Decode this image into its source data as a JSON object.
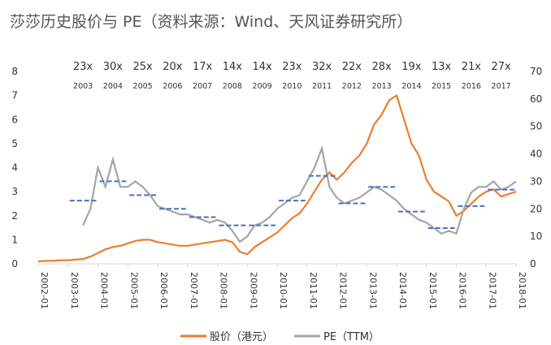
{
  "title": "莎莎历史股价与 PE（资料来源：Wind、天风证券研究所）",
  "chart_data": {
    "type": "line",
    "title": "莎莎历史股价与 PE（资料来源：Wind、天风证券研究所）",
    "x_ticks": [
      "2002-01",
      "2003-01",
      "2004-01",
      "2005-01",
      "2006-01",
      "2007-01",
      "2008-01",
      "2009-01",
      "2010-01",
      "2011-01",
      "2012-01",
      "2013-01",
      "2014-01",
      "2015-01",
      "2016-01",
      "2017-01",
      "2018-01"
    ],
    "y_left": {
      "range": [
        0,
        8
      ],
      "ticks": [
        0,
        1,
        2,
        3,
        4,
        5,
        6,
        7,
        8
      ]
    },
    "y_right": {
      "range": [
        0,
        70
      ],
      "ticks": [
        0,
        10,
        20,
        30,
        40,
        50,
        60,
        70
      ]
    },
    "grid": false,
    "legend_position": "bottom",
    "series": [
      {
        "name": "股价（港元）",
        "axis": "left",
        "color": "#ED7D31",
        "x": [
          "2002-01",
          "2002-04",
          "2002-07",
          "2002-10",
          "2003-01",
          "2003-04",
          "2003-07",
          "2003-10",
          "2004-01",
          "2004-04",
          "2004-07",
          "2004-10",
          "2005-01",
          "2005-04",
          "2005-07",
          "2005-10",
          "2006-01",
          "2006-04",
          "2006-07",
          "2006-10",
          "2007-01",
          "2007-04",
          "2007-07",
          "2007-10",
          "2008-01",
          "2008-04",
          "2008-07",
          "2008-10",
          "2009-01",
          "2009-04",
          "2009-07",
          "2009-10",
          "2010-01",
          "2010-04",
          "2010-07",
          "2010-10",
          "2011-01",
          "2011-04",
          "2011-07",
          "2011-10",
          "2012-01",
          "2012-04",
          "2012-07",
          "2012-10",
          "2013-01",
          "2013-04",
          "2013-07",
          "2013-10",
          "2014-01",
          "2014-04",
          "2014-07",
          "2014-10",
          "2015-01",
          "2015-04",
          "2015-07",
          "2015-10",
          "2016-01",
          "2016-04",
          "2016-07",
          "2016-10",
          "2017-01",
          "2017-04",
          "2017-07",
          "2017-10",
          "2018-01"
        ],
        "values": [
          0.1,
          0.12,
          0.12,
          0.15,
          0.15,
          0.18,
          0.2,
          0.3,
          0.45,
          0.6,
          0.7,
          0.75,
          0.85,
          0.95,
          1.0,
          1.0,
          0.9,
          0.85,
          0.8,
          0.75,
          0.75,
          0.8,
          0.85,
          0.9,
          0.95,
          1.0,
          0.9,
          0.5,
          0.4,
          0.7,
          0.9,
          1.1,
          1.3,
          1.6,
          1.9,
          2.1,
          2.5,
          3.0,
          3.5,
          3.8,
          3.5,
          3.8,
          4.2,
          4.5,
          5.0,
          5.8,
          6.2,
          6.8,
          7.0,
          6.0,
          5.0,
          4.5,
          3.5,
          3.0,
          2.8,
          2.6,
          2.0,
          2.2,
          2.5,
          2.8,
          3.0,
          3.1,
          2.8,
          2.9,
          3.0
        ]
      },
      {
        "name": "PE（TTM）",
        "axis": "right",
        "color": "#A5A5A5",
        "x": [
          "2003-07",
          "2003-10",
          "2004-01",
          "2004-04",
          "2004-07",
          "2004-10",
          "2005-01",
          "2005-04",
          "2005-07",
          "2005-10",
          "2006-01",
          "2006-04",
          "2006-07",
          "2006-10",
          "2007-01",
          "2007-04",
          "2007-07",
          "2007-10",
          "2008-01",
          "2008-04",
          "2008-07",
          "2008-10",
          "2009-01",
          "2009-04",
          "2009-07",
          "2009-10",
          "2010-01",
          "2010-04",
          "2010-07",
          "2010-10",
          "2011-01",
          "2011-04",
          "2011-07",
          "2011-10",
          "2012-01",
          "2012-04",
          "2012-07",
          "2012-10",
          "2013-01",
          "2013-04",
          "2013-07",
          "2013-10",
          "2014-01",
          "2014-04",
          "2014-07",
          "2014-10",
          "2015-01",
          "2015-04",
          "2015-07",
          "2015-10",
          "2016-01",
          "2016-04",
          "2016-07",
          "2016-10",
          "2017-01",
          "2017-04",
          "2017-07",
          "2017-10",
          "2018-01"
        ],
        "values": [
          14,
          20,
          35,
          28,
          38,
          28,
          28,
          30,
          28,
          25,
          21,
          20,
          19,
          18,
          18,
          17,
          16,
          15,
          16,
          15,
          12,
          8,
          10,
          14,
          15,
          17,
          20,
          22,
          24,
          25,
          30,
          35,
          42,
          28,
          24,
          22,
          23,
          24,
          26,
          28,
          27,
          25,
          23,
          20,
          18,
          16,
          15,
          13,
          11,
          12,
          11,
          20,
          26,
          28,
          28,
          30,
          27,
          28,
          30
        ]
      }
    ],
    "annual_pe": [
      {
        "year": "2003",
        "pe": 23,
        "label": "23x"
      },
      {
        "year": "2004",
        "pe": 30,
        "label": "30x"
      },
      {
        "year": "2005",
        "pe": 25,
        "label": "25x"
      },
      {
        "year": "2006",
        "pe": 20,
        "label": "20x"
      },
      {
        "year": "2007",
        "pe": 17,
        "label": "17x"
      },
      {
        "year": "2008",
        "pe": 14,
        "label": "14x"
      },
      {
        "year": "2009",
        "pe": 14,
        "label": "14x"
      },
      {
        "year": "2010",
        "pe": 23,
        "label": "23x"
      },
      {
        "year": "2011",
        "pe": 32,
        "label": "32x"
      },
      {
        "year": "2012",
        "pe": 22,
        "label": "22x"
      },
      {
        "year": "2013",
        "pe": 28,
        "label": "28x"
      },
      {
        "year": "2014",
        "pe": 19,
        "label": "19x"
      },
      {
        "year": "2015",
        "pe": 13,
        "label": "13x"
      },
      {
        "year": "2016",
        "pe": 21,
        "label": "21x"
      },
      {
        "year": "2017",
        "pe": 27,
        "label": "27x"
      }
    ],
    "annual_pe_color": "#4472C4"
  }
}
